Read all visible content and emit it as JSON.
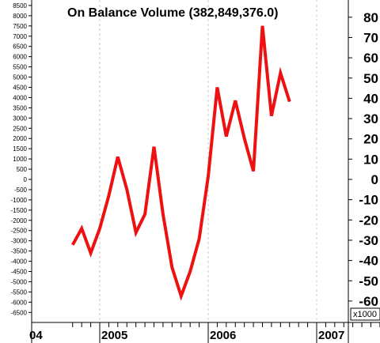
{
  "chart_data": {
    "type": "line",
    "title": "On Balance Volume (382,849,376.0)",
    "xlabel": "",
    "ylabel": "",
    "colors": {
      "line": "#ee1111",
      "grid": "#c8c8c8",
      "axis": "#000000",
      "background": "#ffffff"
    },
    "x_ticks": [
      "04",
      "2005",
      "2006",
      "2007"
    ],
    "grid": {
      "vertical_dashed": true
    },
    "y_left": {
      "ticks": [
        8500,
        8000,
        7500,
        7000,
        6500,
        6000,
        5500,
        5000,
        4500,
        4000,
        3500,
        3000,
        2500,
        2000,
        1500,
        1000,
        500,
        0,
        -500,
        -1000,
        -1500,
        -2000,
        -2500,
        -3000,
        -3500,
        -4000,
        -4500,
        -5000,
        -5500,
        -6000,
        -6500
      ],
      "tick_labels": [
        "8500",
        "8000",
        "7500",
        "7000",
        "6500",
        "6000",
        "5500",
        "5000",
        "4500",
        "4000",
        "3500",
        "3000",
        "2500",
        "2000",
        "1500",
        "1000",
        "500",
        "0",
        "-500",
        "-1000",
        "-1500",
        "-2000",
        "-2500",
        "-3000",
        "-3500",
        "-4000",
        "-4500",
        "-5000",
        "-5500",
        "-6000",
        "-6500"
      ],
      "range": [
        -6700,
        8700
      ]
    },
    "y_right": {
      "ticks": [
        80,
        70,
        60,
        50,
        40,
        30,
        20,
        10,
        0,
        -10,
        -20,
        -30,
        -40,
        -50,
        -60
      ],
      "tick_labels": [
        "80",
        "70",
        "60",
        "50",
        "40",
        "30",
        "20",
        "10",
        "0",
        "-10",
        "-20",
        "-30",
        "-40",
        "-50",
        "-60"
      ],
      "multiplier_label": "x1000"
    },
    "series": [
      {
        "x": [
          "2004-10",
          "2004-11",
          "2004-12",
          "2005-01",
          "2005-02",
          "2005-03",
          "2005-04",
          "2005-05",
          "2005-06",
          "2005-07",
          "2005-08",
          "2005-09",
          "2005-10",
          "2005-11",
          "2005-12",
          "2006-01",
          "2006-02",
          "2006-03",
          "2006-04",
          "2006-05",
          "2006-06",
          "2006-07",
          "2006-08",
          "2006-09",
          "2006-10"
        ],
        "values": [
          -3200,
          -2400,
          -3600,
          -2400,
          -800,
          1100,
          -500,
          -2600,
          -1700,
          1600,
          -1700,
          -4300,
          -5700,
          -4500,
          -2900,
          150,
          4500,
          2100,
          3850,
          2000,
          400,
          7500,
          3100,
          5200,
          3800
        ]
      }
    ]
  }
}
